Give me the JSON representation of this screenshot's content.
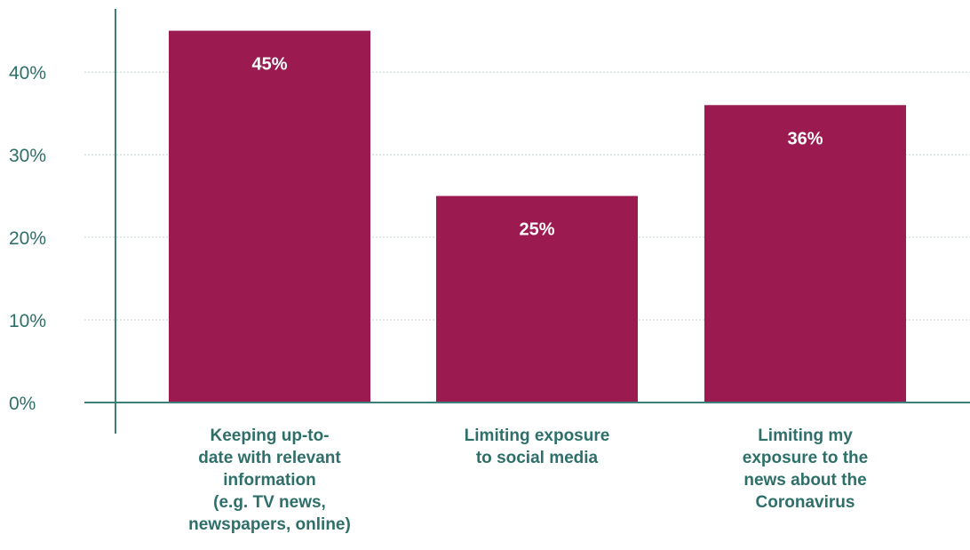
{
  "chart_data": {
    "type": "bar",
    "categories": [
      [
        "Keeping up-to-",
        "date with relevant",
        "information",
        "(e.g. TV news,",
        "newspapers, online)"
      ],
      [
        "Limiting exposure",
        "to social media"
      ],
      [
        "Limiting my",
        "exposure to the",
        "news about the",
        "Coronavirus"
      ]
    ],
    "values": [
      45,
      25,
      36
    ],
    "data_labels": [
      "45%",
      "25%",
      "36%"
    ],
    "yticks": [
      0,
      10,
      20,
      30,
      40
    ],
    "ytick_labels": [
      "0%",
      "10%",
      "20%",
      "30%",
      "40%"
    ],
    "ylim": [
      0,
      47
    ],
    "grid": true,
    "colors": {
      "bar": "#9b1b50",
      "axis": "#3f7f79",
      "text": "#2f6f6a",
      "grid": "#c7d3d2"
    }
  }
}
